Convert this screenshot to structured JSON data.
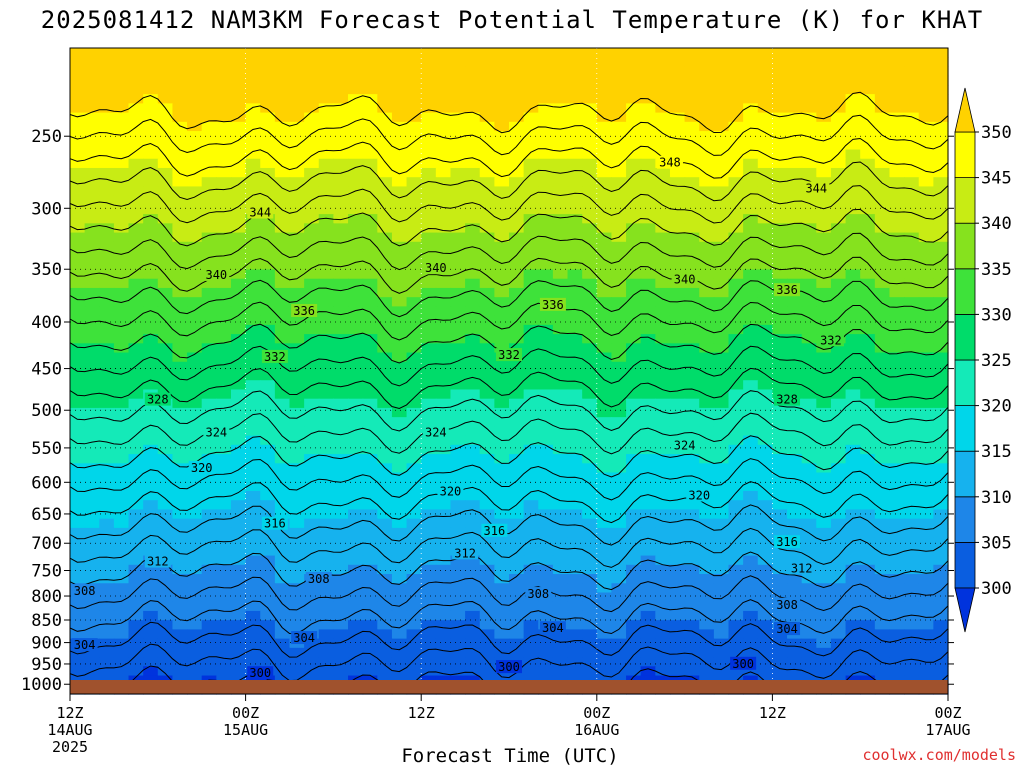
{
  "chart_data": {
    "type": "heatmap",
    "title": "2025081412 NAM3KM Forecast Potential Temperature (K) for KHAT",
    "xlabel": "Forecast Time (UTC)",
    "ylabel": "",
    "credit": "coolwx.com/models",
    "x_ticks": [
      {
        "hour": 0,
        "line1": "12Z",
        "line2": "14AUG",
        "line3": "2025"
      },
      {
        "hour": 12,
        "line1": "00Z",
        "line2": "15AUG",
        "line3": ""
      },
      {
        "hour": 24,
        "line1": "12Z",
        "line2": "",
        "line3": ""
      },
      {
        "hour": 36,
        "line1": "00Z",
        "line2": "16AUG",
        "line3": ""
      },
      {
        "hour": 48,
        "line1": "12Z",
        "line2": "",
        "line3": ""
      },
      {
        "hour": 60,
        "line1": "00Z",
        "line2": "17AUG",
        "line3": ""
      }
    ],
    "xlim_hours": [
      0,
      60
    ],
    "y_scale": "log-pressure, inverted",
    "ylim_hPa": [
      1025,
      200
    ],
    "y_ticks": [
      250,
      300,
      350,
      400,
      450,
      500,
      550,
      600,
      650,
      700,
      750,
      800,
      850,
      900,
      950,
      1000
    ],
    "colorbar": {
      "levels": [
        300,
        305,
        310,
        315,
        320,
        325,
        330,
        335,
        340,
        345,
        350
      ],
      "colors": [
        "#0033dd",
        "#0a5ee0",
        "#1e86e8",
        "#16b2ee",
        "#00d6ea",
        "#14eab8",
        "#00dc6a",
        "#3ee23a",
        "#86e21e",
        "#c8ec14",
        "#ffff00",
        "#ffd200"
      ],
      "extend": "both"
    },
    "contour_interval_K": 2,
    "labeled_contours": [
      {
        "value": 348,
        "hour": 41,
        "p": 268
      },
      {
        "value": 344,
        "hour": 13,
        "p": 304
      },
      {
        "value": 344,
        "hour": 51,
        "p": 286
      },
      {
        "value": 340,
        "hour": 10,
        "p": 356
      },
      {
        "value": 340,
        "hour": 25,
        "p": 350
      },
      {
        "value": 340,
        "hour": 42,
        "p": 360
      },
      {
        "value": 336,
        "hour": 16,
        "p": 390
      },
      {
        "value": 336,
        "hour": 33,
        "p": 384
      },
      {
        "value": 336,
        "hour": 49,
        "p": 370
      },
      {
        "value": 332,
        "hour": 14,
        "p": 438
      },
      {
        "value": 332,
        "hour": 30,
        "p": 436
      },
      {
        "value": 332,
        "hour": 52,
        "p": 420
      },
      {
        "value": 328,
        "hour": 6,
        "p": 488
      },
      {
        "value": 328,
        "hour": 49,
        "p": 488
      },
      {
        "value": 324,
        "hour": 10,
        "p": 530
      },
      {
        "value": 324,
        "hour": 25,
        "p": 530
      },
      {
        "value": 324,
        "hour": 42,
        "p": 548
      },
      {
        "value": 320,
        "hour": 9,
        "p": 580
      },
      {
        "value": 320,
        "hour": 26,
        "p": 616
      },
      {
        "value": 320,
        "hour": 43,
        "p": 622
      },
      {
        "value": 316,
        "hour": 14,
        "p": 668
      },
      {
        "value": 316,
        "hour": 29,
        "p": 680
      },
      {
        "value": 316,
        "hour": 49,
        "p": 700
      },
      {
        "value": 312,
        "hour": 6,
        "p": 735
      },
      {
        "value": 312,
        "hour": 27,
        "p": 720
      },
      {
        "value": 312,
        "hour": 50,
        "p": 748
      },
      {
        "value": 308,
        "hour": 1,
        "p": 792
      },
      {
        "value": 308,
        "hour": 17,
        "p": 768
      },
      {
        "value": 308,
        "hour": 32,
        "p": 798
      },
      {
        "value": 308,
        "hour": 49,
        "p": 820
      },
      {
        "value": 304,
        "hour": 1,
        "p": 908
      },
      {
        "value": 304,
        "hour": 16,
        "p": 892
      },
      {
        "value": 304,
        "hour": 33,
        "p": 870
      },
      {
        "value": 304,
        "hour": 49,
        "p": 872
      },
      {
        "value": 300,
        "hour": 13,
        "p": 975
      },
      {
        "value": 300,
        "hour": 30,
        "p": 960
      },
      {
        "value": 300,
        "hour": 46,
        "p": 952
      }
    ]
  }
}
